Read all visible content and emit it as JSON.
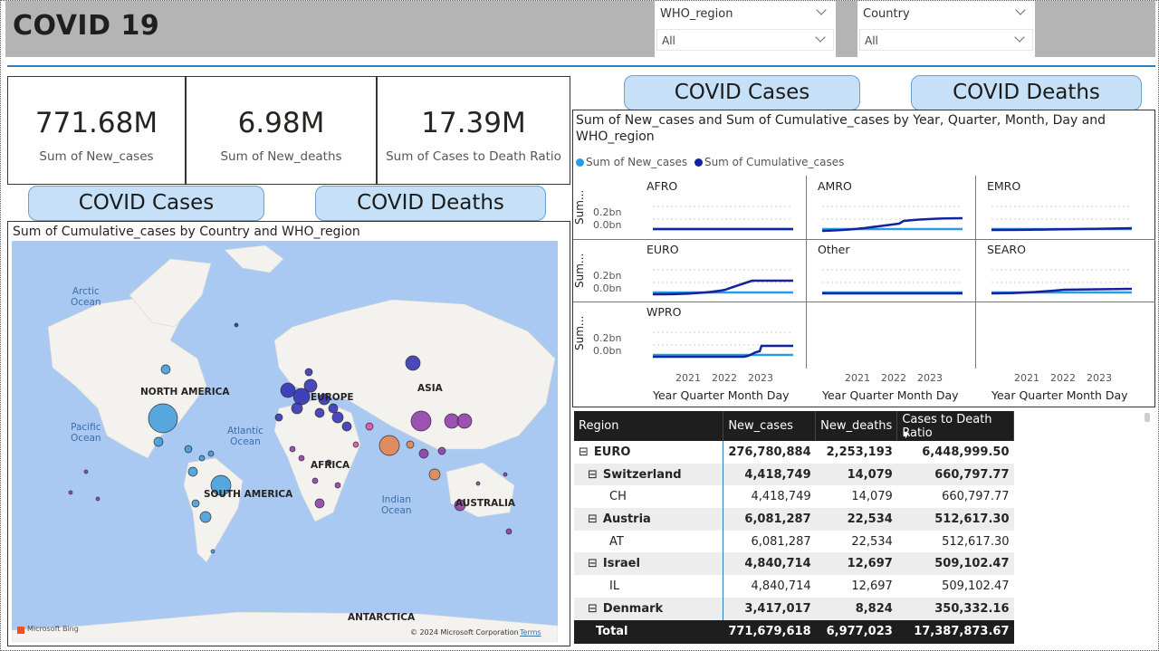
{
  "header": {
    "title": "COVID 19"
  },
  "slicers": [
    {
      "label": "WHO_region",
      "value": "All"
    },
    {
      "label": "Country",
      "value": "All"
    }
  ],
  "cards": [
    {
      "value": "771.68M",
      "caption": "Sum of New_cases"
    },
    {
      "value": "6.98M",
      "caption": "Sum of New_deaths"
    },
    {
      "value": "17.39M",
      "caption": "Sum of Cases to Death Ratio"
    }
  ],
  "buttons": {
    "cases": "COVID Cases",
    "deaths": "COVID Deaths"
  },
  "map": {
    "title": "Sum of Cumulative_cases by Country and WHO_region",
    "labels": {
      "arctic": "Arctic\nOcean",
      "north_america": "NORTH AMERICA",
      "europe": "EUROPE",
      "asia": "ASIA",
      "pacific": "Pacific\nOcean",
      "atlantic": "Atlantic\nOcean",
      "africa": "AFRICA",
      "south_america": "SOUTH AMERICA",
      "indian": "Indian\nOcean",
      "australia": "AUSTRALIA",
      "antarctica": "ANTARCTICA"
    },
    "bing": "Microsoft Bing",
    "copyright": "© 2024 Microsoft Corporation",
    "terms": "Terms"
  },
  "small_multiples": {
    "title": "Sum of New_cases and Sum of Cumulative_cases by Year, Quarter, Month, Day and WHO_region",
    "legend": [
      "Sum of New_cases",
      "Sum of Cumulative_cases"
    ],
    "colors": {
      "new_cases": "#2b9be8",
      "cumulative": "#12239e"
    },
    "y_label": "Sum...",
    "y_ticks": [
      "0.2bn",
      "0.0bn"
    ],
    "x_ticks": [
      "2021",
      "2022",
      "2023"
    ],
    "x_label": "Year Quarter Month Day",
    "panels": [
      "AFRO",
      "AMRO",
      "EMRO",
      "EURO",
      "Other",
      "SEARO",
      "WPRO"
    ]
  },
  "table": {
    "headers": [
      "Region",
      "New_cases",
      "New_deaths",
      "Cases to Death Ratio"
    ],
    "rows": [
      {
        "name": "EURO",
        "expand": "⊟",
        "level": 0,
        "bold": true,
        "shade": false,
        "v": [
          "276,780,884",
          "2,253,193",
          "6,448,999.50"
        ]
      },
      {
        "name": "Switzerland",
        "expand": "⊟",
        "level": 1,
        "bold": true,
        "shade": true,
        "v": [
          "4,418,749",
          "14,079",
          "660,797.77"
        ]
      },
      {
        "name": "CH",
        "expand": "",
        "level": 2,
        "bold": false,
        "shade": false,
        "v": [
          "4,418,749",
          "14,079",
          "660,797.77"
        ]
      },
      {
        "name": "Austria",
        "expand": "⊟",
        "level": 1,
        "bold": true,
        "shade": true,
        "v": [
          "6,081,287",
          "22,534",
          "512,617.30"
        ]
      },
      {
        "name": "AT",
        "expand": "",
        "level": 2,
        "bold": false,
        "shade": false,
        "v": [
          "6,081,287",
          "22,534",
          "512,617.30"
        ]
      },
      {
        "name": "Israel",
        "expand": "⊟",
        "level": 1,
        "bold": true,
        "shade": true,
        "v": [
          "4,840,714",
          "12,697",
          "509,102.47"
        ]
      },
      {
        "name": "IL",
        "expand": "",
        "level": 2,
        "bold": false,
        "shade": false,
        "v": [
          "4,840,714",
          "12,697",
          "509,102.47"
        ]
      },
      {
        "name": "Denmark",
        "expand": "⊟",
        "level": 1,
        "bold": true,
        "shade": true,
        "v": [
          "3,417,017",
          "8,824",
          "350,332.16"
        ]
      }
    ],
    "total": {
      "name": "Total",
      "v": [
        "771,679,618",
        "6,977,023",
        "17,387,873.67"
      ]
    }
  }
}
